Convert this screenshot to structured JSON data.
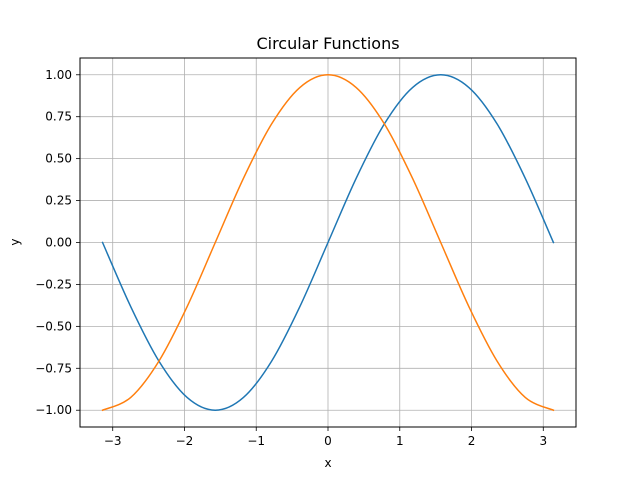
{
  "chart_data": {
    "type": "line",
    "title": "Circular Functions",
    "xlabel": "x",
    "ylabel": "y",
    "xlim": [
      -3.456,
      3.456
    ],
    "ylim": [
      -1.1,
      1.1
    ],
    "xticks": [
      -3,
      -2,
      -1,
      0,
      1,
      2,
      3
    ],
    "xtick_labels": [
      "−3",
      "−2",
      "−1",
      "0",
      "1",
      "2",
      "3"
    ],
    "yticks": [
      -1.0,
      -0.75,
      -0.5,
      -0.25,
      0.0,
      0.25,
      0.5,
      0.75,
      1.0
    ],
    "ytick_labels": [
      "−1.00",
      "−0.75",
      "−0.50",
      "−0.25",
      "0.00",
      "0.25",
      "0.50",
      "0.75",
      "1.00"
    ],
    "grid": true,
    "series": [
      {
        "color": "#1f77b4",
        "x": [
          -3.1416,
          -2.7489,
          -2.3562,
          -1.9635,
          -1.5708,
          -1.1781,
          -0.7854,
          -0.3927,
          0.0,
          0.3927,
          0.7854,
          1.1781,
          1.5708,
          1.9635,
          2.3562,
          2.7489,
          3.1416
        ],
        "y": [
          0.0,
          -0.3827,
          -0.7071,
          -0.9239,
          -1.0,
          -0.9239,
          -0.7071,
          -0.3827,
          0.0,
          0.3827,
          0.7071,
          0.9239,
          1.0,
          0.9239,
          0.7071,
          0.3827,
          0.0
        ]
      },
      {
        "color": "#ff7f0e",
        "x": [
          -3.1416,
          -2.7489,
          -2.3562,
          -1.9635,
          -1.5708,
          -1.1781,
          -0.7854,
          -0.3927,
          0.0,
          0.3927,
          0.7854,
          1.1781,
          1.5708,
          1.9635,
          2.3562,
          2.7489,
          3.1416
        ],
        "y": [
          -1.0,
          -0.9239,
          -0.7071,
          -0.3827,
          0.0,
          0.3827,
          0.7071,
          0.9239,
          1.0,
          0.9239,
          0.7071,
          0.3827,
          0.0,
          -0.3827,
          -0.7071,
          -0.9239,
          -1.0
        ]
      }
    ]
  }
}
